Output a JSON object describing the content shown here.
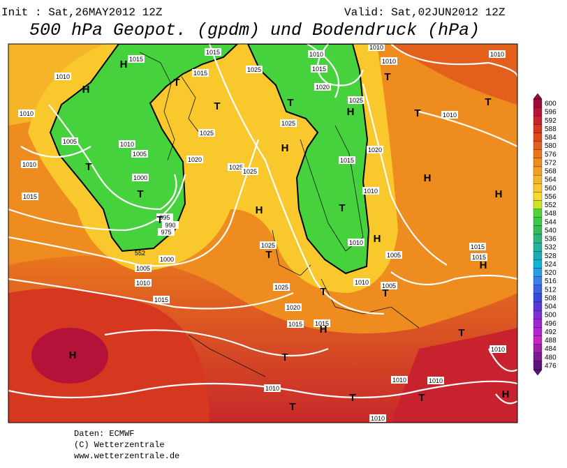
{
  "header": {
    "init": "Init : Sat,26MAY2012 12Z",
    "valid": "Valid: Sat,02JUN2012 12Z",
    "title": "500 hPa Geopot. (gpdm) und Bodendruck (hPa)"
  },
  "colorbar": {
    "levels": [
      600,
      596,
      592,
      588,
      584,
      580,
      576,
      572,
      568,
      564,
      560,
      556,
      552,
      548,
      544,
      540,
      536,
      532,
      528,
      524,
      520,
      516,
      512,
      508,
      504,
      500,
      496,
      492,
      488,
      484,
      480,
      476
    ],
    "colors": [
      "#9a0a3a",
      "#b5123a",
      "#c8222e",
      "#d5371f",
      "#dc4a1c",
      "#e2601c",
      "#e8761e",
      "#ee8c20",
      "#f2a024",
      "#f6b428",
      "#f8c82c",
      "#f6dc2a",
      "#c8e628",
      "#52d23a",
      "#3ec84a",
      "#34bc5c",
      "#2cb67c",
      "#24b09a",
      "#1aacb4",
      "#12b4d4",
      "#2a9ce6",
      "#3a80e8",
      "#3a64e4",
      "#3a48dc",
      "#5a38d8",
      "#7a30d4",
      "#9a2ad0",
      "#b426cc",
      "#c824c4",
      "#a020a8",
      "#7a1a90",
      "#5a1478"
    ]
  },
  "map": {
    "contour_label": "552",
    "isobar_labels": [
      1010,
      1015,
      1015,
      1015,
      1025,
      1010,
      1015,
      1020,
      1025,
      1010,
      1010,
      1010,
      1010,
      1005,
      1010,
      1005,
      1025,
      1025,
      1020,
      1020,
      1025,
      1025,
      1010,
      1015,
      1000,
      1015,
      1010,
      995,
      990,
      975,
      1000,
      1005,
      1010,
      1015,
      1025,
      1025,
      1020,
      1015,
      1015,
      1010,
      1010,
      1005,
      1005,
      1015,
      1015,
      1010,
      1010,
      1010,
      1010,
      1010,
      1010
    ],
    "centers": [
      "H",
      "H",
      "H",
      "H",
      "H",
      "H",
      "H",
      "H",
      "H",
      "H",
      "H",
      "H",
      "T",
      "T",
      "T",
      "T",
      "T",
      "T",
      "T",
      "T",
      "T",
      "T",
      "T",
      "T",
      "T",
      "T",
      "T",
      "T",
      "T",
      "T"
    ]
  },
  "footer": {
    "source": "Daten: ECMWF",
    "copyright": "(C) Wetterzentrale",
    "url": "www.wetterzentrale.de"
  }
}
